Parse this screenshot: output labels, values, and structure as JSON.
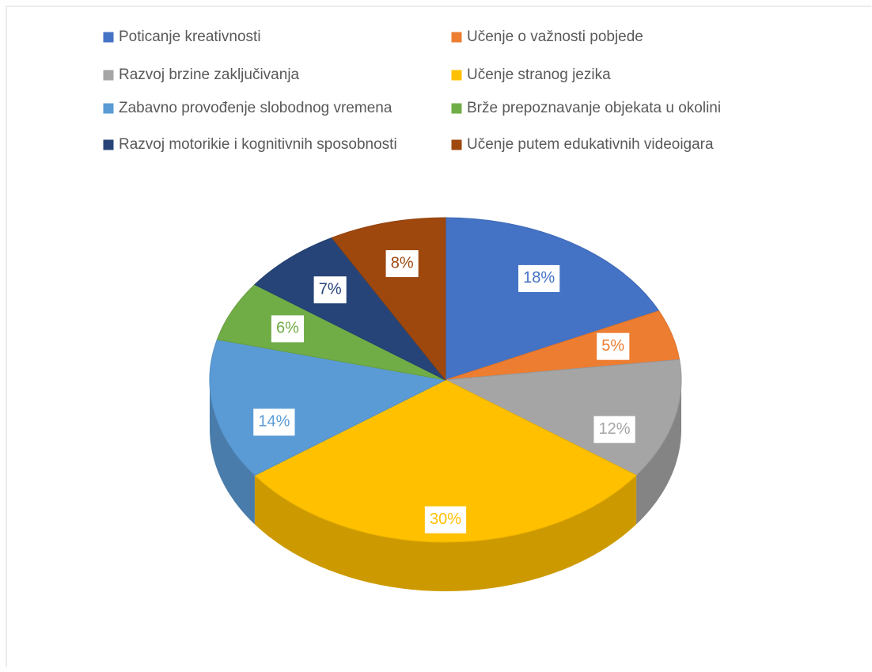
{
  "chart_data": {
    "type": "pie",
    "categories": [
      "Poticanje kreativnosti",
      "Učenje o važnosti pobjede",
      "Razvoj brzine zaključivanja",
      "Učenje stranog jezika",
      "Zabavno provođenje slobodnog vremena",
      "Brže prepoznavanje objekata u okolini",
      "Razvoj motorikie i kognitivnih sposobnosti",
      "Učenje putem edukativnih videoigara"
    ],
    "values": [
      18,
      5,
      12,
      30,
      14,
      6,
      7,
      8
    ],
    "value_labels": [
      "18%",
      "5%",
      "12%",
      "30%",
      "14%",
      "6%",
      "7%",
      "8%"
    ],
    "colors": [
      "#4472c4",
      "#ed7d31",
      "#a5a5a5",
      "#ffc000",
      "#5b9bd5",
      "#70ad47",
      "#264478",
      "#9e480e"
    ],
    "legend": "top"
  }
}
